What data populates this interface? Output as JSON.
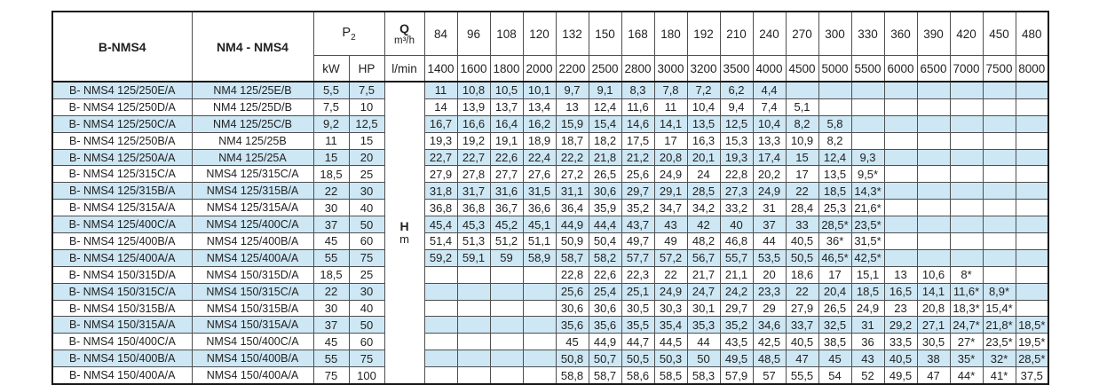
{
  "table": {
    "headers": {
      "col_b": "B-NMS4",
      "col_nm": "NM4 - NMS4",
      "p2_base": "P",
      "p2_sub": "2",
      "p2_units": {
        "kw": "kW",
        "hp": "HP"
      },
      "q_symbol": "Q",
      "q_unit": "m³/h",
      "q_unit2": "l/min"
    },
    "h_col": {
      "label": "H",
      "unit": "m"
    },
    "flow_m3h": [
      "84",
      "96",
      "108",
      "120",
      "132",
      "150",
      "168",
      "180",
      "192",
      "210",
      "240",
      "270",
      "300",
      "330",
      "360",
      "390",
      "420",
      "450",
      "480"
    ],
    "flow_lmin": [
      "1400",
      "1600",
      "1800",
      "2000",
      "2200",
      "2500",
      "2800",
      "3000",
      "3200",
      "3500",
      "4000",
      "4500",
      "5000",
      "5500",
      "6000",
      "6500",
      "7000",
      "7500",
      "8000"
    ],
    "rows": [
      {
        "b": "B- NMS4 125/250E/A",
        "nm": "NM4 125/25E/B",
        "kw": "5,5",
        "hp": "7,5",
        "values": [
          "11",
          "10,8",
          "10,5",
          "10,1",
          "9,7",
          "9,1",
          "8,3",
          "7,8",
          "7,2",
          "6,2",
          "4,4",
          "",
          "",
          "",
          "",
          "",
          "",
          "",
          ""
        ]
      },
      {
        "b": "B- NMS4 125/250D/A",
        "nm": "NM4 125/25D/B",
        "kw": "7,5",
        "hp": "10",
        "values": [
          "14",
          "13,9",
          "13,7",
          "13,4",
          "13",
          "12,4",
          "11,6",
          "11",
          "10,4",
          "9,4",
          "7,4",
          "5,1",
          "",
          "",
          "",
          "",
          "",
          "",
          ""
        ]
      },
      {
        "b": "B- NMS4 125/250C/A",
        "nm": "NM4 125/25C/B",
        "kw": "9,2",
        "hp": "12,5",
        "values": [
          "16,7",
          "16,6",
          "16,4",
          "16,2",
          "15,9",
          "15,4",
          "14,6",
          "14,1",
          "13,5",
          "12,5",
          "10,4",
          "8,2",
          "5,8",
          "",
          "",
          "",
          "",
          "",
          ""
        ]
      },
      {
        "b": "B- NMS4 125/250B/A",
        "nm": "NM4 125/25B",
        "kw": "11",
        "hp": "15",
        "values": [
          "19,3",
          "19,2",
          "19,1",
          "18,9",
          "18,7",
          "18,2",
          "17,5",
          "17",
          "16,3",
          "15,3",
          "13,3",
          "10,9",
          "8,2",
          "",
          "",
          "",
          "",
          "",
          ""
        ]
      },
      {
        "b": "B- NMS4 125/250A/A",
        "nm": "NM4 125/25A",
        "kw": "15",
        "hp": "20",
        "values": [
          "22,7",
          "22,7",
          "22,6",
          "22,4",
          "22,2",
          "21,8",
          "21,2",
          "20,8",
          "20,1",
          "19,3",
          "17,4",
          "15",
          "12,4",
          "9,3",
          "",
          "",
          "",
          "",
          ""
        ]
      },
      {
        "b": "B- NMS4 125/315C/A",
        "nm": "NMS4 125/315C/A",
        "kw": "18,5",
        "hp": "25",
        "values": [
          "27,9",
          "27,8",
          "27,7",
          "27,6",
          "27,2",
          "26,5",
          "25,6",
          "24,9",
          "24",
          "22,8",
          "20,2",
          "17",
          "13,5",
          "9,5*",
          "",
          "",
          "",
          "",
          ""
        ]
      },
      {
        "b": "B- NMS4 125/315B/A",
        "nm": "NMS4 125/315B/A",
        "kw": "22",
        "hp": "30",
        "values": [
          "31,8",
          "31,7",
          "31,6",
          "31,5",
          "31,1",
          "30,6",
          "29,7",
          "29,1",
          "28,5",
          "27,3",
          "24,9",
          "22",
          "18,5",
          "14,3*",
          "",
          "",
          "",
          "",
          ""
        ]
      },
      {
        "b": "B- NMS4 125/315A/A",
        "nm": "NMS4 125/315A/A",
        "kw": "30",
        "hp": "40",
        "values": [
          "36,8",
          "36,8",
          "36,7",
          "36,6",
          "36,4",
          "35,9",
          "35,2",
          "34,7",
          "34,2",
          "33,2",
          "31",
          "28,4",
          "25,3",
          "21,6*",
          "",
          "",
          "",
          "",
          ""
        ]
      },
      {
        "b": "B- NMS4 125/400C/A",
        "nm": "NMS4 125/400C/A",
        "kw": "37",
        "hp": "50",
        "values": [
          "45,4",
          "45,3",
          "45,2",
          "45,1",
          "44,9",
          "44,4",
          "43,7",
          "43",
          "42",
          "40",
          "37",
          "33",
          "28,5*",
          "23,5*",
          "",
          "",
          "",
          "",
          ""
        ]
      },
      {
        "b": "B- NMS4 125/400B/A",
        "nm": "NMS4 125/400B/A",
        "kw": "45",
        "hp": "60",
        "values": [
          "51,4",
          "51,3",
          "51,2",
          "51,1",
          "50,9",
          "50,4",
          "49,7",
          "49",
          "48,2",
          "46,8",
          "44",
          "40,5",
          "36*",
          "31,5*",
          "",
          "",
          "",
          "",
          ""
        ]
      },
      {
        "b": "B- NMS4 125/400A/A",
        "nm": "NMS4 125/400A/A",
        "kw": "55",
        "hp": "75",
        "values": [
          "59,2",
          "59,1",
          "59",
          "58,9",
          "58,7",
          "58,2",
          "57,7",
          "57,2",
          "56,7",
          "55,7",
          "53,5",
          "50,5",
          "46,5*",
          "42,5*",
          "",
          "",
          "",
          "",
          ""
        ]
      },
      {
        "b": "B- NMS4 150/315D/A",
        "nm": "NMS4 150/315D/A",
        "kw": "18,5",
        "hp": "25",
        "values": [
          "",
          "",
          "",
          "",
          "22,8",
          "22,6",
          "22,3",
          "22",
          "21,7",
          "21,1",
          "20",
          "18,6",
          "17",
          "15,1",
          "13",
          "10,6",
          "8*",
          "",
          ""
        ]
      },
      {
        "b": "B- NMS4 150/315C/A",
        "nm": "NMS4 150/315C/A",
        "kw": "22",
        "hp": "30",
        "values": [
          "",
          "",
          "",
          "",
          "25,6",
          "25,4",
          "25,1",
          "24,9",
          "24,7",
          "24,2",
          "23,3",
          "22",
          "20,4",
          "18,5",
          "16,5",
          "14,1",
          "11,6*",
          "8,9*",
          ""
        ]
      },
      {
        "b": "B- NMS4 150/315B/A",
        "nm": "NMS4 150/315B/A",
        "kw": "30",
        "hp": "40",
        "values": [
          "",
          "",
          "",
          "",
          "30,6",
          "30,6",
          "30,5",
          "30,3",
          "30,1",
          "29,7",
          "29",
          "27,9",
          "26,5",
          "24,9",
          "23",
          "20,8",
          "18,3*",
          "15,4*",
          ""
        ]
      },
      {
        "b": "B- NMS4 150/315A/A",
        "nm": "NMS4 150/315A/A",
        "kw": "37",
        "hp": "50",
        "values": [
          "",
          "",
          "",
          "",
          "35,6",
          "35,6",
          "35,5",
          "35,4",
          "35,3",
          "35,2",
          "34,6",
          "33,7",
          "32,5",
          "31",
          "29,2",
          "27,1",
          "24,7*",
          "21,8*",
          "18,5*"
        ]
      },
      {
        "b": "B- NMS4 150/400C/A",
        "nm": "NMS4 150/400C/A",
        "kw": "45",
        "hp": "60",
        "values": [
          "",
          "",
          "",
          "",
          "45",
          "44,9",
          "44,7",
          "44,5",
          "44",
          "43,5",
          "42,5",
          "40,5",
          "38,5",
          "36",
          "33,5",
          "30,5",
          "27*",
          "23,5*",
          "19,5*"
        ]
      },
      {
        "b": "B- NMS4 150/400B/A",
        "nm": "NMS4 150/400B/A",
        "kw": "55",
        "hp": "75",
        "values": [
          "",
          "",
          "",
          "",
          "50,8",
          "50,7",
          "50,5",
          "50,3",
          "50",
          "49,5",
          "48,5",
          "47",
          "45",
          "43",
          "40,5",
          "38",
          "35*",
          "32*",
          "28,5*"
        ]
      },
      {
        "b": "B- NMS4 150/400A/A",
        "nm": "NMS4 150/400A/A",
        "kw": "75",
        "hp": "100",
        "values": [
          "",
          "",
          "",
          "",
          "58,8",
          "58,7",
          "58,6",
          "58,5",
          "58,3",
          "57,9",
          "57",
          "55,5",
          "54",
          "52",
          "49,5",
          "47",
          "44*",
          "41*",
          "37,5"
        ]
      }
    ]
  },
  "colors": {
    "stripe_blue": "#cde7f4",
    "border_inner": "#4f4f4f",
    "border_outer": "#161616",
    "text": "#222222"
  }
}
